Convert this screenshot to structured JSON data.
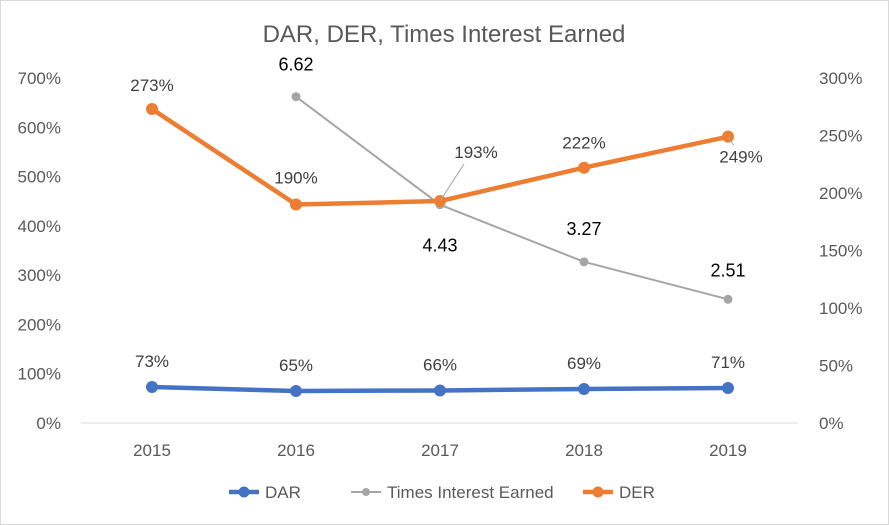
{
  "chart_data": {
    "type": "line",
    "title": "DAR, DER, Times Interest Earned",
    "categories": [
      "2015",
      "2016",
      "2017",
      "2018",
      "2019"
    ],
    "left_axis": {
      "min": 0,
      "max": 7,
      "tick_labels": [
        "0%",
        "100%",
        "200%",
        "300%",
        "400%",
        "500%",
        "600%",
        "700%"
      ]
    },
    "right_axis": {
      "min": 0,
      "max": 3,
      "tick_labels": [
        "0%",
        "50%",
        "100%",
        "150%",
        "200%",
        "250%",
        "300%"
      ]
    },
    "grid": false,
    "legend_position": "bottom",
    "series": [
      {
        "name": "DAR",
        "axis": "left",
        "color": "#4472C4",
        "values": [
          0.73,
          0.65,
          0.66,
          0.69,
          0.71
        ],
        "labels": [
          "73%",
          "65%",
          "66%",
          "69%",
          "71%"
        ]
      },
      {
        "name": "Times Interest Earned",
        "axis": "left",
        "color": "#A5A5A5",
        "values": [
          null,
          6.62,
          4.43,
          3.27,
          2.51
        ],
        "labels": [
          "",
          "6.62",
          "4.43",
          "3.27",
          "2.51"
        ]
      },
      {
        "name": "DER",
        "axis": "right",
        "color": "#ED7D31",
        "values": [
          2.73,
          1.9,
          1.93,
          2.22,
          2.49
        ],
        "labels": [
          "273%",
          "190%",
          "193%",
          "222%",
          "249%"
        ]
      }
    ]
  }
}
